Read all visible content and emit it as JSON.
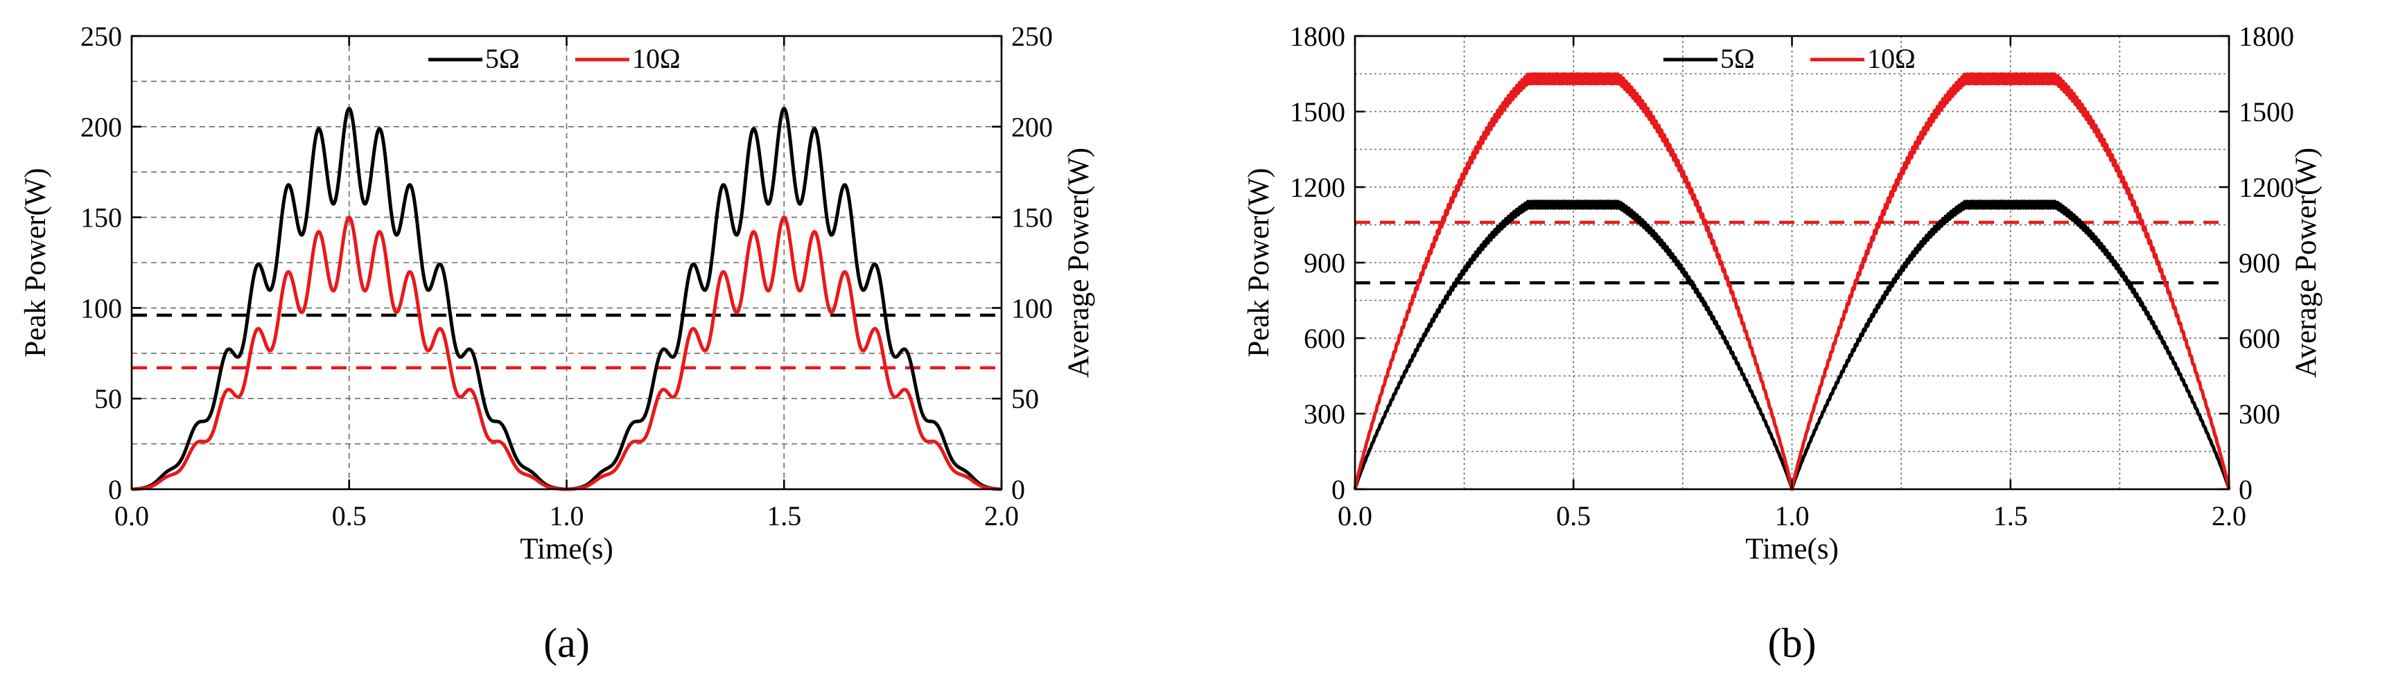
{
  "chart_data": [
    {
      "type": "line",
      "panel_label": "(a)",
      "xlabel": "Time(s)",
      "ylabel": "Peak Power(W)",
      "y2label": "Average Power(W)",
      "xlim": [
        0,
        2
      ],
      "ylim": [
        0,
        250
      ],
      "xticks": [
        0.0,
        0.5,
        1.0,
        1.5,
        2.0
      ],
      "xtick_labels": [
        "0.0",
        "0.5",
        "1.0",
        "1.5",
        "2.0"
      ],
      "yticks": [
        0,
        50,
        100,
        150,
        200,
        250
      ],
      "ytick_labels": [
        "0",
        "50",
        "100",
        "150",
        "200",
        "250"
      ],
      "grid": true,
      "legend_position": "top-center",
      "series": [
        {
          "name": "5Ω",
          "color": "#000000",
          "style": "solid",
          "peak": 210,
          "ripple_cycles": 7,
          "ripple_depth": 0.24
        },
        {
          "name": "10Ω",
          "color": "#e8191b",
          "style": "solid",
          "peak": 150,
          "ripple_cycles": 7,
          "ripple_depth": 0.26
        }
      ],
      "averages": [
        {
          "name": "5Ω average",
          "color": "#000000",
          "value": 96
        },
        {
          "name": "10Ω average",
          "color": "#e8191b",
          "value": 67
        }
      ]
    },
    {
      "type": "line",
      "panel_label": "(b)",
      "xlabel": "Time(s)",
      "ylabel": "Peak Power(W)",
      "y2label": "Average Power(W)",
      "xlim": [
        0,
        2
      ],
      "ylim": [
        0,
        1800
      ],
      "xticks": [
        0.0,
        0.5,
        1.0,
        1.5,
        2.0
      ],
      "xtick_labels": [
        "0.0",
        "0.5",
        "1.0",
        "1.5",
        "2.0"
      ],
      "yticks": [
        0,
        300,
        600,
        900,
        1200,
        1500,
        1800
      ],
      "ytick_labels": [
        "0",
        "300",
        "600",
        "900",
        "1200",
        "1500",
        "1800"
      ],
      "grid": true,
      "legend_position": "top-center",
      "series": [
        {
          "name": "5Ω",
          "color": "#000000",
          "style": "solid",
          "peak": 1130
        },
        {
          "name": "10Ω",
          "color": "#e8191b",
          "style": "solid",
          "peak": 1630
        }
      ],
      "averages": [
        {
          "name": "5Ω average",
          "color": "#000000",
          "value": 820
        },
        {
          "name": "10Ω average",
          "color": "#e8191b",
          "value": 1060
        }
      ]
    }
  ]
}
